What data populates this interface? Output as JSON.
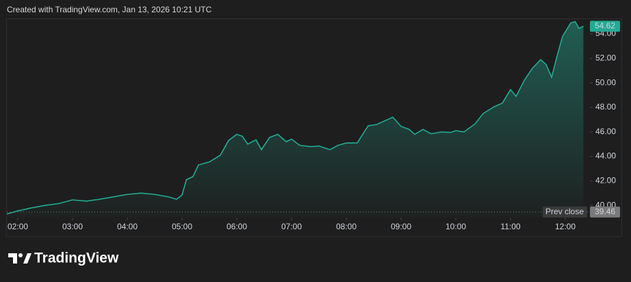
{
  "chart_data": {
    "type": "area",
    "title": "Created with TradingView.com, Jan 13, 2026 10:21 UTC",
    "brand": "TradingView",
    "color": "#22ab94",
    "x": [
      1.8,
      2.0,
      2.25,
      2.5,
      2.75,
      3.0,
      3.25,
      3.5,
      3.75,
      4.0,
      4.25,
      4.5,
      4.75,
      4.9,
      5.0,
      5.08,
      5.2,
      5.3,
      5.5,
      5.7,
      5.85,
      6.0,
      6.1,
      6.2,
      6.35,
      6.45,
      6.6,
      6.75,
      6.9,
      7.0,
      7.15,
      7.35,
      7.5,
      7.7,
      7.85,
      8.0,
      8.2,
      8.4,
      8.55,
      8.75,
      8.85,
      9.0,
      9.15,
      9.25,
      9.4,
      9.55,
      9.75,
      9.9,
      10.0,
      10.15,
      10.35,
      10.5,
      10.7,
      10.85,
      11.0,
      11.1,
      11.25,
      11.4,
      11.55,
      11.65,
      11.75,
      11.85,
      11.95,
      12.1,
      12.18,
      12.25,
      12.33
    ],
    "values": [
      39.3,
      39.55,
      39.8,
      40.0,
      40.15,
      40.45,
      40.35,
      40.5,
      40.7,
      40.9,
      41.0,
      40.9,
      40.7,
      40.5,
      40.85,
      42.1,
      42.35,
      43.3,
      43.55,
      44.1,
      45.3,
      45.8,
      45.65,
      45.0,
      45.35,
      44.55,
      45.55,
      45.8,
      45.2,
      45.4,
      44.9,
      44.8,
      44.85,
      44.55,
      44.9,
      45.1,
      45.1,
      46.5,
      46.6,
      47.0,
      47.2,
      46.45,
      46.2,
      45.8,
      46.2,
      45.85,
      46.0,
      45.95,
      46.1,
      46.0,
      46.65,
      47.5,
      48.05,
      48.35,
      49.45,
      48.9,
      50.2,
      51.2,
      51.9,
      51.5,
      50.45,
      52.2,
      53.8,
      54.9,
      55.0,
      54.45,
      54.62
    ],
    "prev_close": {
      "label": "Prev close",
      "value": 39.46
    },
    "xlim": [
      1.8,
      12.45
    ],
    "ylim": [
      39,
      55.2
    ],
    "xticks": [
      {
        "value": 2,
        "label": "02:00"
      },
      {
        "value": 3,
        "label": "03:00"
      },
      {
        "value": 4,
        "label": "04:00"
      },
      {
        "value": 5,
        "label": "05:00"
      },
      {
        "value": 6,
        "label": "06:00"
      },
      {
        "value": 7,
        "label": "07:00"
      },
      {
        "value": 8,
        "label": "08:00"
      },
      {
        "value": 9,
        "label": "09:00"
      },
      {
        "value": 10,
        "label": "10:00"
      },
      {
        "value": 11,
        "label": "11:00"
      },
      {
        "value": 12,
        "label": "12:00"
      }
    ],
    "yticks": [
      {
        "value": 40,
        "label": "40.00"
      },
      {
        "value": 42,
        "label": "42.00"
      },
      {
        "value": 44,
        "label": "44.00"
      },
      {
        "value": 46,
        "label": "46.00"
      },
      {
        "value": 48,
        "label": "48.00"
      },
      {
        "value": 50,
        "label": "50.00"
      },
      {
        "value": 52,
        "label": "52.00"
      },
      {
        "value": 54,
        "label": "54.00"
      }
    ]
  }
}
